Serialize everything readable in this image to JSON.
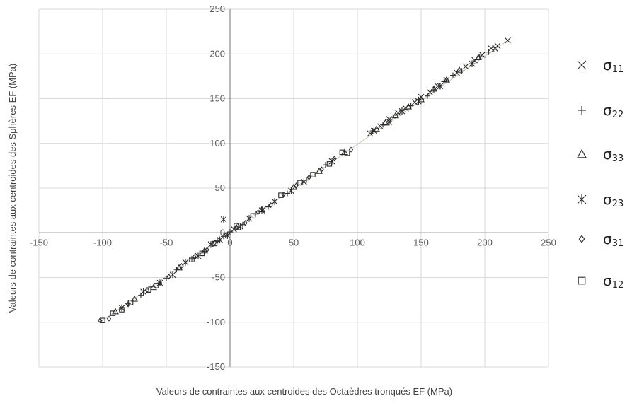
{
  "chart_data": {
    "type": "scatter",
    "title": "",
    "xlabel": "Valeurs de contraintes aux centroides des Octaèdres tronqués EF (MPa)",
    "ylabel": "Valeurs de contraintes aux centroides des Sphères EF (MPa)",
    "xlim": [
      -150,
      250
    ],
    "ylim": [
      -150,
      250
    ],
    "xticks": [
      -150,
      -100,
      -50,
      0,
      50,
      100,
      150,
      200,
      250
    ],
    "yticks": [
      -150,
      -100,
      -50,
      0,
      50,
      100,
      150,
      200,
      250
    ],
    "grid": true,
    "legend_position": "right",
    "series": [
      {
        "name": "σ11",
        "legend_symbol": "σ",
        "legend_sub": "11",
        "marker": "x",
        "x": [
          110,
          118,
          125,
          132,
          138,
          145,
          150,
          157,
          163,
          170,
          178,
          185,
          192,
          198,
          205,
          210,
          218
        ],
        "y": [
          111,
          119,
          127,
          134,
          139,
          146,
          152,
          157,
          164,
          171,
          179,
          186,
          193,
          199,
          206,
          209,
          215
        ]
      },
      {
        "name": "σ22",
        "legend_symbol": "σ",
        "legend_sub": "22",
        "marker": "plus",
        "x": [
          112,
          120,
          128,
          135,
          142,
          148,
          155,
          160,
          168,
          175,
          182,
          190,
          196,
          203,
          -80,
          -70,
          -62,
          -50,
          -42,
          -30,
          -20,
          -10,
          -5,
          0,
          10,
          20,
          30,
          45,
          60,
          75
        ],
        "y": [
          114,
          121,
          129,
          137,
          142,
          149,
          153,
          160,
          169,
          176,
          181,
          189,
          197,
          202,
          -79,
          -70,
          -60,
          -51,
          -41,
          -29,
          -21,
          -9,
          -4,
          1,
          9,
          21,
          29,
          44,
          59,
          76
        ]
      },
      {
        "name": "σ33",
        "legend_symbol": "σ",
        "legend_sub": "33",
        "marker": "triangle",
        "x": [
          115,
          122,
          130,
          140,
          150,
          160,
          170,
          180,
          195,
          -90,
          -75,
          -60,
          -40,
          -20,
          5,
          25,
          50,
          70,
          90
        ],
        "y": [
          116,
          123,
          131,
          141,
          149,
          161,
          171,
          182,
          196,
          -88,
          -74,
          -61,
          -39,
          -20,
          6,
          26,
          51,
          69,
          90
        ]
      },
      {
        "name": "σ23",
        "legend_symbol": "σ",
        "legend_sub": "23",
        "marker": "asterisk",
        "x": [
          -85,
          -68,
          -55,
          -45,
          -35,
          -25,
          -15,
          -8,
          -5,
          -2,
          3,
          8,
          15,
          25,
          35,
          48,
          58,
          80,
          113,
          125,
          135,
          148,
          165,
          190,
          208
        ],
        "y": [
          -84,
          -66,
          -56,
          -47,
          -33,
          -26,
          -13,
          -8,
          15,
          -3,
          4,
          7,
          16,
          25,
          35,
          47,
          57,
          80,
          114,
          124,
          136,
          147,
          164,
          189,
          206
        ],
        "x2": [],
        "y2": []
      },
      {
        "name": "σ31",
        "legend_symbol": "σ",
        "legend_sub": "31",
        "marker": "diamond",
        "x": [
          -102,
          -95,
          -80,
          -65,
          -55,
          -48,
          -38,
          -28,
          -18,
          -12,
          -3,
          5,
          12,
          22,
          32,
          42,
          52,
          62,
          72,
          82,
          95
        ],
        "y": [
          -98,
          -96,
          -80,
          -64,
          -56,
          -49,
          -37,
          -27,
          -19,
          -11,
          -2,
          6,
          11,
          23,
          31,
          43,
          53,
          62,
          71,
          83,
          93
        ],
        "x2": [],
        "y2": []
      },
      {
        "name": "σ12",
        "legend_symbol": "σ",
        "legend_sub": "12",
        "marker": "square",
        "x": [
          -100,
          -92,
          -85,
          -78,
          -64,
          -58,
          -30,
          -22,
          -12,
          5,
          18,
          40,
          55,
          65,
          78,
          88,
          92
        ],
        "y": [
          -98,
          -90,
          -86,
          -78,
          -64,
          -59,
          -30,
          -23,
          -12,
          8,
          19,
          42,
          56,
          65,
          77,
          90,
          89
        ]
      }
    ]
  }
}
